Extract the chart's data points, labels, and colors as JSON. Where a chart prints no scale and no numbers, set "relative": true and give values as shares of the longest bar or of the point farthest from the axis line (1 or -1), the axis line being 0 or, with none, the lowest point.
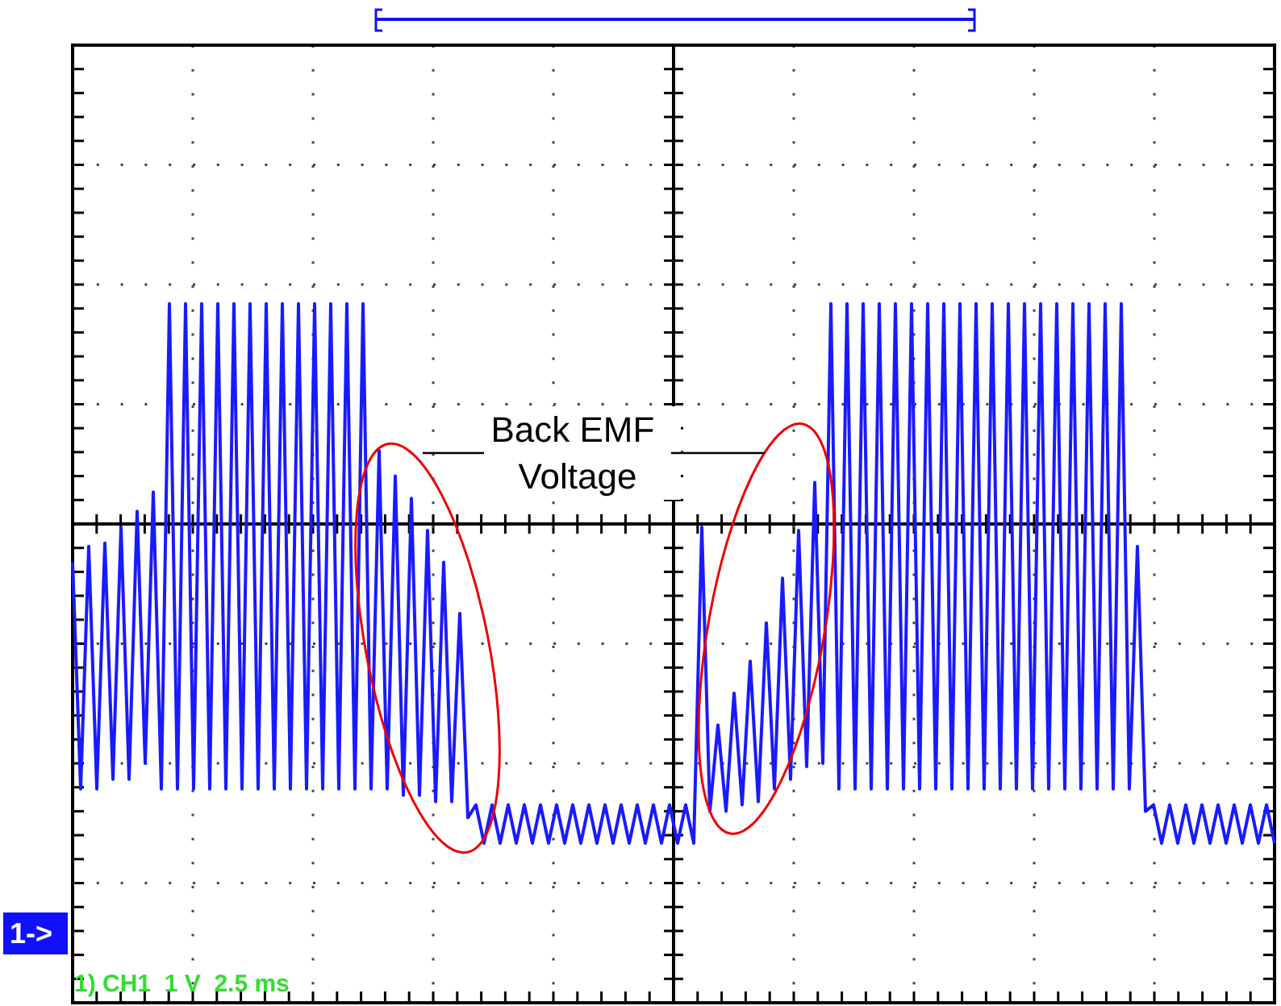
{
  "chart_data": {
    "type": "line",
    "relative": true,
    "grid": true,
    "line_style": "solid",
    "categories": [
      null,
      null,
      null,
      null,
      null,
      null,
      null,
      null,
      null,
      null,
      null,
      null,
      null,
      null,
      null,
      null,
      null,
      null,
      null,
      null,
      null,
      null,
      null,
      null,
      null,
      null,
      null,
      null,
      null,
      null,
      null,
      null,
      null,
      null,
      null,
      null,
      null,
      null,
      null,
      null,
      null,
      null,
      null,
      null,
      null,
      null,
      null,
      null,
      null,
      null,
      null,
      null,
      null,
      null,
      null,
      null,
      null,
      null,
      null,
      null,
      null,
      null,
      null,
      null,
      null,
      null,
      null,
      null,
      null,
      null,
      null,
      null,
      null,
      null,
      null,
      null,
      null,
      null,
      null,
      null,
      null,
      null,
      null,
      null,
      null,
      null,
      null,
      null,
      null,
      null,
      null,
      null,
      null,
      null,
      null,
      null,
      null,
      null,
      null,
      null,
      null,
      null,
      null,
      null,
      null,
      null,
      null,
      null,
      null,
      null,
      null,
      null,
      null,
      null,
      null,
      null,
      null,
      null,
      null,
      null,
      null,
      null,
      null,
      null,
      null,
      null,
      null,
      null,
      null,
      null,
      null,
      null,
      null,
      null,
      null,
      null,
      null,
      null,
      null,
      null,
      null,
      null,
      null,
      null,
      null,
      null,
      null,
      null,
      null,
      null
    ],
    "series": [
      {
        "color": "#1a1aff",
        "values": [
          -0.12,
          -0.83,
          -0.07,
          -0.83,
          -0.06,
          -0.8,
          -0.01,
          -0.8,
          0.04,
          -0.75,
          0.1,
          -0.83,
          0.69,
          -0.83,
          0.69,
          -0.83,
          0.69,
          -0.83,
          0.69,
          -0.83,
          0.69,
          -0.83,
          0.69,
          -0.83,
          0.69,
          -0.83,
          0.69,
          -0.83,
          0.69,
          -0.83,
          0.69,
          -0.83,
          0.69,
          -0.83,
          0.69,
          -0.83,
          0.69,
          -0.83,
          0.23,
          -0.83,
          0.15,
          -0.85,
          0.08,
          -0.85,
          -0.02,
          -0.87,
          -0.12,
          -0.87,
          -0.28,
          -0.92,
          -0.88,
          -1,
          -0.88,
          -1,
          -0.88,
          -1,
          -0.88,
          -1,
          -0.88,
          -1,
          -0.88,
          -1,
          -0.88,
          -1,
          -0.88,
          -1,
          -0.88,
          -1,
          -0.88,
          -1,
          -0.88,
          -1,
          -0.88,
          -1,
          -0.88,
          -1,
          -0.88,
          -1,
          -0.01,
          -0.9,
          -0.63,
          -0.9,
          -0.53,
          -0.88,
          -0.43,
          -0.87,
          -0.31,
          -0.83,
          -0.17,
          -0.8,
          -0.02,
          -0.76,
          0.13,
          -0.75,
          0.69,
          -0.83,
          0.69,
          -0.83,
          0.69,
          -0.83,
          0.69,
          -0.83,
          0.69,
          -0.83,
          0.69,
          -0.83,
          0.69,
          -0.83,
          0.69,
          -0.83,
          0.69,
          -0.83,
          0.69,
          -0.83,
          0.69,
          -0.83,
          0.69,
          -0.83,
          0.69,
          -0.83,
          0.69,
          -0.83,
          0.69,
          -0.83,
          0.69,
          -0.83,
          0.69,
          -0.83,
          0.69,
          -0.83,
          0.69,
          -0.83,
          -0.07,
          -0.9,
          -0.88,
          -1,
          -0.88,
          -1,
          -0.88,
          -1,
          -0.88,
          -1,
          -0.88,
          -1,
          -0.88,
          -1,
          -0.88,
          -1,
          -0.88,
          -1
        ]
      }
    ],
    "annotations": [
      "Back EMF Voltage",
      "1->",
      "1) CH1  1 V  2.5 ms"
    ]
  }
}
